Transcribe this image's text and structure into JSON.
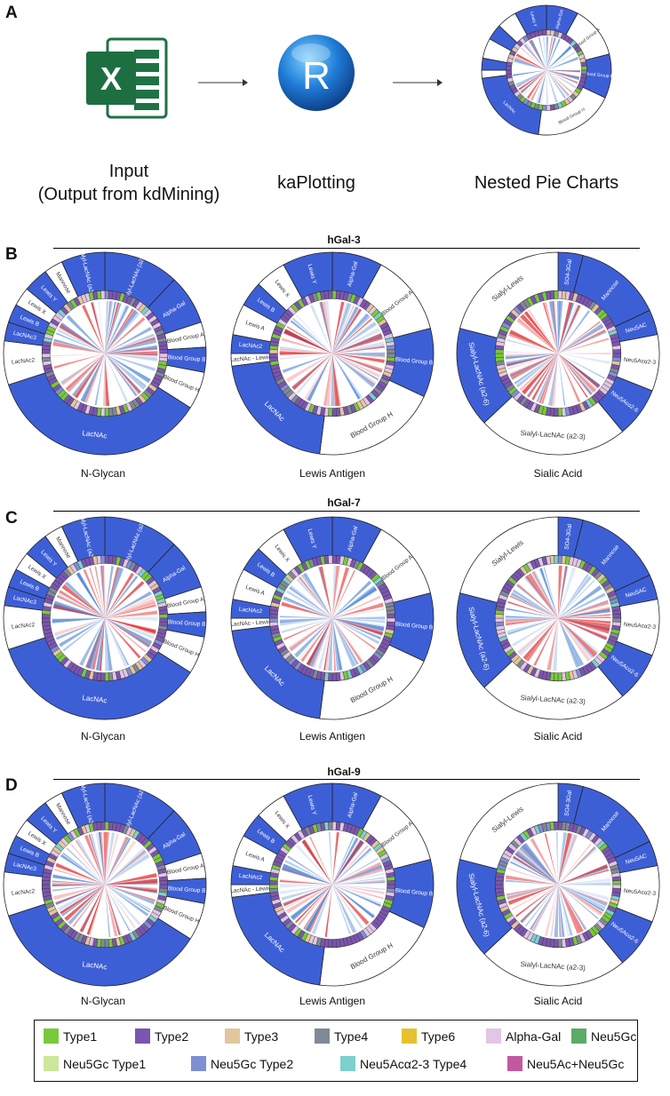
{
  "panel_labels": {
    "a": "A",
    "b": "B",
    "c": "C",
    "d": "D"
  },
  "workflow": {
    "step1": {
      "line1": "Input",
      "line2": "(Output from kdMining)",
      "icon": "excel-icon",
      "icon_letter": "X"
    },
    "step2": {
      "label": "kaPlotting",
      "icon": "r-logo-icon",
      "icon_letter": "R"
    },
    "step3": {
      "label": "Nested Pie Charts",
      "icon": "nested-pie-thumbnail"
    }
  },
  "rows": [
    {
      "title": "hGal-3",
      "label": "B"
    },
    {
      "title": "hGal-7",
      "label": "C"
    },
    {
      "title": "hGal-9",
      "label": "D"
    }
  ],
  "chart_captions": [
    "N-Glycan",
    "Lewis Antigen",
    "Sialic Acid"
  ],
  "chart_data": {
    "type": "nested-pie",
    "charts": {
      "n_glycan": {
        "caption": "N-Glycan",
        "segments": [
          {
            "label": "Sialyl-LacNAc (a2-6)",
            "frac": 0.12,
            "fill": "#3d5fd6",
            "text": "#ffffff"
          },
          {
            "label": "Alpha-Gal",
            "frac": 0.08,
            "fill": "#3d5fd6",
            "text": "#ffffff"
          },
          {
            "label": "Blood Group A",
            "frac": 0.04,
            "fill": "#ffffff",
            "text": "#333333"
          },
          {
            "label": "Blood Group B",
            "frac": 0.04,
            "fill": "#3d5fd6",
            "text": "#ffffff"
          },
          {
            "label": "Blood Group H",
            "frac": 0.06,
            "fill": "#ffffff",
            "text": "#333333"
          },
          {
            "label": "LacNAc",
            "frac": 0.36,
            "fill": "#3d5fd6",
            "text": "#ffffff"
          },
          {
            "label": "LacNAc2",
            "frac": 0.07,
            "fill": "#ffffff",
            "text": "#333333"
          },
          {
            "label": "LacNAc3",
            "frac": 0.03,
            "fill": "#3d5fd6",
            "text": "#ffffff"
          },
          {
            "label": "Lewis B",
            "frac": 0.03,
            "fill": "#3d5fd6",
            "text": "#ffffff"
          },
          {
            "label": "Lewis X",
            "frac": 0.03,
            "fill": "#ffffff",
            "text": "#333333"
          },
          {
            "label": "Lewis Y",
            "frac": 0.04,
            "fill": "#3d5fd6",
            "text": "#ffffff"
          },
          {
            "label": "Mannose",
            "frac": 0.03,
            "fill": "#ffffff",
            "text": "#333333"
          },
          {
            "label": "Sialyl-LacNAc (a2-3)",
            "frac": 0.07,
            "fill": "#3d5fd6",
            "text": "#ffffff"
          }
        ]
      },
      "lewis_antigen": {
        "caption": "Lewis Antigen",
        "segments": [
          {
            "label": "Alpha-Gal",
            "frac": 0.08,
            "fill": "#3d5fd6",
            "text": "#ffffff"
          },
          {
            "label": "Blood Group A",
            "frac": 0.13,
            "fill": "#ffffff",
            "text": "#333333"
          },
          {
            "label": "Blood Group B",
            "frac": 0.11,
            "fill": "#3d5fd6",
            "text": "#ffffff"
          },
          {
            "label": "Blood Group H",
            "frac": 0.2,
            "fill": "#ffffff",
            "text": "#333333"
          },
          {
            "label": "LacNAc",
            "frac": 0.21,
            "fill": "#3d5fd6",
            "text": "#ffffff"
          },
          {
            "label": "LacNAc - Lewis",
            "frac": 0.02,
            "fill": "#ffffff",
            "text": "#333333"
          },
          {
            "label": "LacNAc2",
            "frac": 0.03,
            "fill": "#3d5fd6",
            "text": "#ffffff"
          },
          {
            "label": "Lewis A",
            "frac": 0.05,
            "fill": "#ffffff",
            "text": "#333333"
          },
          {
            "label": "Lewis B",
            "frac": 0.04,
            "fill": "#3d5fd6",
            "text": "#ffffff"
          },
          {
            "label": "Lewis X",
            "frac": 0.05,
            "fill": "#ffffff",
            "text": "#333333"
          },
          {
            "label": "Lewis Y",
            "frac": 0.08,
            "fill": "#3d5fd6",
            "text": "#ffffff"
          }
        ]
      },
      "sialic_acid": {
        "caption": "Sialic Acid",
        "segments": [
          {
            "label": "SO4-3Gal",
            "frac": 0.04,
            "fill": "#3d5fd6",
            "text": "#ffffff"
          },
          {
            "label": "Mannose",
            "frac": 0.14,
            "fill": "#3d5fd6",
            "text": "#ffffff"
          },
          {
            "label": "Neu5AC",
            "frac": 0.04,
            "fill": "#3d5fd6",
            "text": "#ffffff"
          },
          {
            "label": "Neu5Acα2-3",
            "frac": 0.09,
            "fill": "#ffffff",
            "text": "#333333"
          },
          {
            "label": "Neu5Acα2-6",
            "frac": 0.08,
            "fill": "#3d5fd6",
            "text": "#ffffff"
          },
          {
            "label": "Sialyl-LacNAc (a2-3)",
            "frac": 0.24,
            "fill": "#ffffff",
            "text": "#333333"
          },
          {
            "label": "Sialyl-LacNAc (a2-6)",
            "frac": 0.16,
            "fill": "#3d5fd6",
            "text": "#ffffff"
          },
          {
            "label": "Sialyl-Lewis",
            "frac": 0.21,
            "fill": "#ffffff",
            "text": "#333333"
          }
        ]
      }
    }
  },
  "legend": {
    "items": [
      {
        "label": "Type1",
        "color": "#78c93c"
      },
      {
        "label": "Type2",
        "color": "#7b55b0"
      },
      {
        "label": "Type3",
        "color": "#e2c79c"
      },
      {
        "label": "Type4",
        "color": "#7f8a96"
      },
      {
        "label": "Type6",
        "color": "#e5c22d"
      },
      {
        "label": "Alpha-Gal",
        "color": "#e2c6e4"
      },
      {
        "label": "Neu5Gc",
        "color": "#5cab67"
      },
      {
        "label": "Neu5Gc Type1",
        "color": "#cce79a"
      },
      {
        "label": "Neu5Gc Type2",
        "color": "#7f8fd3"
      },
      {
        "label": "Neu5Acα2-3 Type4",
        "color": "#7ecfcf"
      },
      {
        "label": "Neu5Ac+Neu5Gc",
        "color": "#c259a0"
      }
    ]
  },
  "colors": {
    "segment_blue": "#3d5fd6",
    "binding_red": "#e02020",
    "binding_blue": "#4b84d4"
  }
}
